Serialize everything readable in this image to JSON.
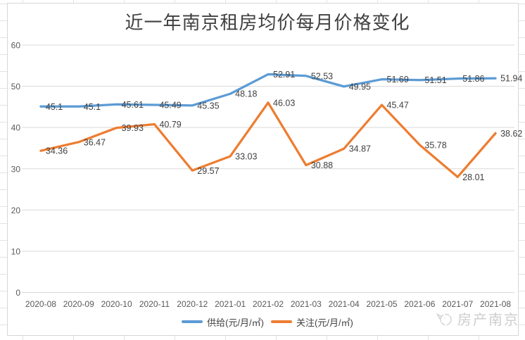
{
  "title": "近一年南京租房均价每月价格变化",
  "watermark": {
    "label": "房产南京",
    "icon": "sketch-mascot-icon"
  },
  "colors": {
    "supply_line": "#5B9BD5",
    "attention_line": "#ED7D31",
    "gridline": "#D9D9D9",
    "axis_text": "#595959",
    "data_label_text": "#404040",
    "title_text": "#404040",
    "watermark_text": "#CDCDCD"
  },
  "chart_data": {
    "type": "line",
    "title": "近一年南京租房均价每月价格变化",
    "categories": [
      "2020-08",
      "2020-09",
      "2020-10",
      "2020-11",
      "2020-12",
      "2021-01",
      "2021-02",
      "2021-03",
      "2021-04",
      "2021-05",
      "2021-06",
      "2021-07",
      "2021-08"
    ],
    "series": [
      {
        "name": "供给(元/月/㎡)",
        "color": "#5B9BD5",
        "values": [
          45.1,
          45.1,
          45.61,
          45.49,
          45.35,
          48.18,
          52.91,
          52.53,
          49.95,
          51.69,
          51.51,
          51.86,
          51.94
        ]
      },
      {
        "name": "关注(元/月/㎡)",
        "color": "#ED7D31",
        "values": [
          34.36,
          36.47,
          39.93,
          40.79,
          29.57,
          33.03,
          46.03,
          30.88,
          34.87,
          45.47,
          35.78,
          28.01,
          38.62
        ]
      }
    ],
    "xlabel": "",
    "ylabel": "",
    "ylim": [
      0,
      60
    ],
    "yticks": [
      0,
      10,
      20,
      30,
      40,
      50,
      60
    ],
    "grid": "horizontal",
    "data_labels": "right-of-point",
    "legend_position": "bottom"
  }
}
